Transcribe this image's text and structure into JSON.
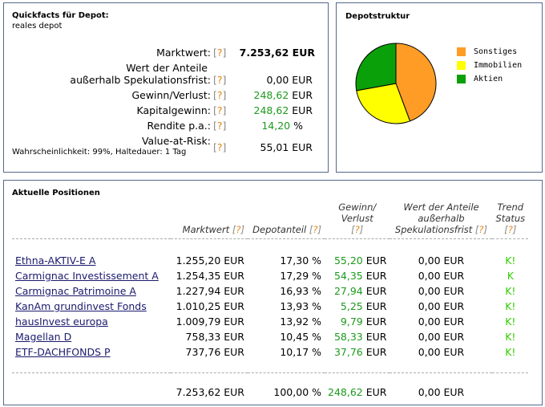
{
  "quickfacts": {
    "title": "Quickfacts für Depot:",
    "depot_name": "reales depot",
    "help": "[?]",
    "rows": [
      {
        "label": "Marktwert:",
        "value": "7.253,62 EUR"
      },
      {
        "label": "Wert der Anteile",
        "label2": "außerhalb Spekulationsfrist:",
        "value": "0,00 EUR"
      },
      {
        "label": "Gewinn/Verlust:",
        "value_num": "248,62",
        "unit": "EUR"
      },
      {
        "label": "Kapitalgewinn:",
        "value_num": "248,62",
        "unit": "EUR"
      },
      {
        "label": "Rendite p.a.:",
        "value_num": "14,20",
        "unit": "%"
      },
      {
        "label": "Value-at-Risk:",
        "note": "Wahrscheinlichkeit: 99%, Haltedauer: 1 Tag",
        "value": "55,01 EUR"
      }
    ]
  },
  "depotstruktur": {
    "title": "Depotstruktur",
    "chart_data": {
      "type": "pie",
      "series": [
        {
          "name": "Sonstiges",
          "value": 44.3,
          "color": "#ff9c26"
        },
        {
          "name": "Immobilien",
          "value": 27.85,
          "color": "#ffff00"
        },
        {
          "name": "Aktien",
          "value": 27.85,
          "color": "#0aa00a"
        }
      ]
    }
  },
  "positions": {
    "title": "Aktuelle Positionen",
    "help": "[?]",
    "headers": {
      "marktwert": "Marktwert",
      "depotanteil": "Depotanteil",
      "gewinn1": "Gewinn/",
      "gewinn2": "Verlust",
      "wert1": "Wert der Anteile",
      "wert2": "außerhalb",
      "wert3": "Spekulationsfrist",
      "trend1": "Trend",
      "trend2": "Status"
    },
    "rows": [
      {
        "name": "Ethna-AKTIV-E A",
        "marktwert": "1.255,20 EUR",
        "anteil": "17,30 %",
        "gewinn": "55,20",
        "wert": "0,00 EUR",
        "trend": "K!"
      },
      {
        "name": "Carmignac Investissement A",
        "marktwert": "1.254,35 EUR",
        "anteil": "17,29 %",
        "gewinn": "54,35",
        "wert": "0,00 EUR",
        "trend": "K"
      },
      {
        "name": "Carmignac Patrimoine A",
        "marktwert": "1.227,94 EUR",
        "anteil": "16,93 %",
        "gewinn": "27,94",
        "wert": "0,00 EUR",
        "trend": "K!"
      },
      {
        "name": "KanAm grundinvest Fonds",
        "marktwert": "1.010,25 EUR",
        "anteil": "13,93 %",
        "gewinn": "5,25",
        "wert": "0,00 EUR",
        "trend": "K!"
      },
      {
        "name": "hausInvest europa",
        "marktwert": "1.009,79 EUR",
        "anteil": "13,92 %",
        "gewinn": "9,79",
        "wert": "0,00 EUR",
        "trend": "K!"
      },
      {
        "name": "Magellan D",
        "marktwert": "758,33 EUR",
        "anteil": "10,45 %",
        "gewinn": "58,33",
        "wert": "0,00 EUR",
        "trend": "K!"
      },
      {
        "name": "ETF-DACHFONDS P",
        "marktwert": "737,76 EUR",
        "anteil": "10,17 %",
        "gewinn": "37,76",
        "wert": "0,00 EUR",
        "trend": "K!"
      }
    ],
    "total": {
      "marktwert": "7.253,62 EUR",
      "anteil": "100,00 %",
      "gewinn": "248,62",
      "wert": "0,00 EUR"
    },
    "unit": "EUR"
  }
}
